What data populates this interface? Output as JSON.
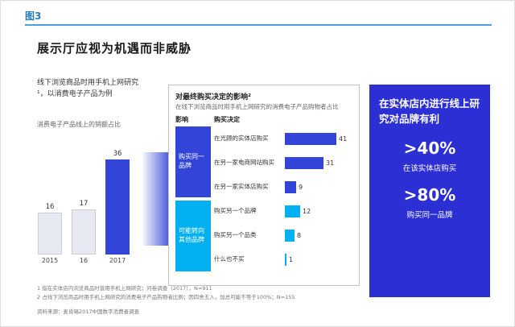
{
  "figure_label": "图3",
  "title": "展示厅应视为机遇而非威胁",
  "colors": {
    "accent_blue": "#3344d8",
    "cyan": "#00b0f0",
    "panel_blue": "#2b2fd4",
    "rule_blue": "#4aa3d8",
    "figure_label_blue": "#2a7ab8",
    "light_bar": "#e6e8f2"
  },
  "left_section": {
    "caption": "线下浏览商品时用手机上网研究¹，以消费电子产品为例",
    "axis_note": "消费电子产品线上的销额占比"
  },
  "middle_section": {
    "title": "对最终购买决定的影响²",
    "subtitle": "在线下浏览商品时用手机上网研究的消费电子产品购物者占比",
    "col_impact": "影响",
    "col_decision": "购买决定",
    "groups": [
      {
        "label": "购买同一品牌"
      },
      {
        "label": "可能转向其他品牌"
      }
    ]
  },
  "right_panel": {
    "title": "在实体店内进行线上研究对品牌有利",
    "stats": [
      {
        "value": ">40%",
        "label": "在该实体店购买"
      },
      {
        "value": ">80%",
        "label": "购买同一品牌"
      }
    ]
  },
  "footnotes": [
    "1 指在实体店内浏览商品时曾用手机上网研究；问卷调查（2017），N=911",
    "2 占线下浏览商品时用手机上网研究的消费电子产品购物者比例；因四舍五入，加总可能不等于100%；N=155"
  ],
  "source": "资料来源：麦肯锡2017中国数字消费者调查",
  "chart_data": [
    {
      "type": "bar",
      "title": "消费电子产品线上的销额占比",
      "categories": [
        "2015",
        "16",
        "2017"
      ],
      "values": [
        16,
        17,
        36
      ],
      "bar_colors": [
        "#e6e8f2",
        "#e6e8f2",
        "#3344d8"
      ],
      "highlight_index": 2,
      "ylim": [
        0,
        40
      ],
      "grid": false,
      "legend": "none"
    },
    {
      "type": "bar",
      "orientation": "horizontal",
      "title": "对最终购买决定的影响",
      "categories": [
        "在光顾的实体店购买",
        "在另一家电商网站购买",
        "在另一家实体店购买",
        "购买另一个品牌",
        "购买另一个品类",
        "什么也不买"
      ],
      "values": [
        41,
        31,
        9,
        12,
        8,
        1
      ],
      "groups": [
        "购买同一品牌",
        "购买同一品牌",
        "购买同一品牌",
        "可能转向其他品牌",
        "可能转向其他品牌",
        "可能转向其他品牌"
      ],
      "bar_colors": [
        "#3344d8",
        "#3344d8",
        "#3344d8",
        "#00b0f0",
        "#00b0f0",
        "#00b0f0"
      ],
      "xlim": [
        0,
        45
      ],
      "grid": false,
      "legend": "none"
    }
  ]
}
